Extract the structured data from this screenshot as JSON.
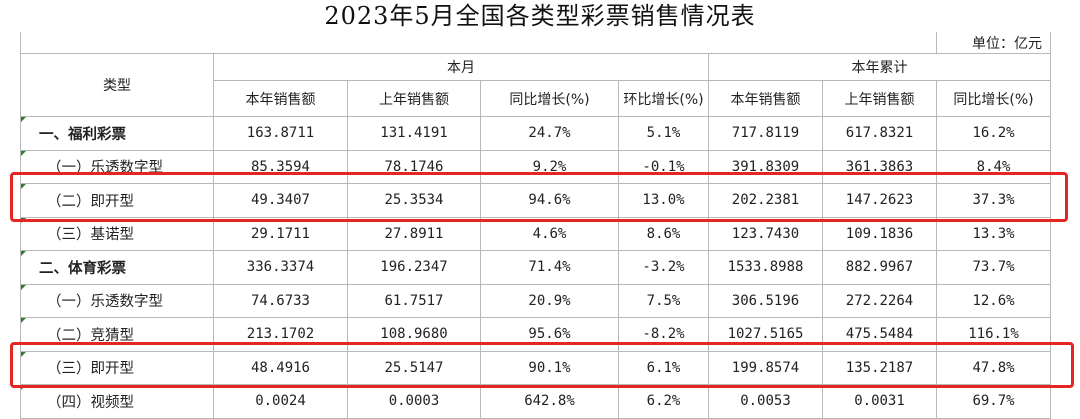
{
  "title": "2023年5月全国各类型彩票销售情况表",
  "unit": "单位：亿元",
  "header": {
    "type_label": "类型",
    "this_month": "本月",
    "ytd": "本年累计",
    "columns": [
      "本年销售额",
      "上年销售额",
      "同比增长(%)",
      "环比增长(%)",
      "本年销售额",
      "上年销售额",
      "同比增长(%)"
    ]
  },
  "rows": [
    {
      "name": "一、福利彩票",
      "cells": [
        "163.8711",
        "131.4191",
        "24.7%",
        "5.1%",
        "717.8119",
        "617.8321",
        "16.2%"
      ]
    },
    {
      "name": "（一）乐透数字型",
      "cells": [
        "85.3594",
        "78.1746",
        "9.2%",
        "-0.1%",
        "391.8309",
        "361.3863",
        "8.4%"
      ]
    },
    {
      "name": "（二）即开型",
      "cells": [
        "49.3407",
        "25.3534",
        "94.6%",
        "13.0%",
        "202.2381",
        "147.2623",
        "37.3%"
      ]
    },
    {
      "name": "（三）基诺型",
      "cells": [
        "29.1711",
        "27.8911",
        "4.6%",
        "8.6%",
        "123.7430",
        "109.1836",
        "13.3%"
      ]
    },
    {
      "name": "二、体育彩票",
      "cells": [
        "336.3374",
        "196.2347",
        "71.4%",
        "-3.2%",
        "1533.8988",
        "882.9967",
        "73.7%"
      ]
    },
    {
      "name": "（一）乐透数字型",
      "cells": [
        "74.6733",
        "61.7517",
        "20.9%",
        "7.5%",
        "306.5196",
        "272.2264",
        "12.6%"
      ]
    },
    {
      "name": "（二）竞猜型",
      "cells": [
        "213.1702",
        "108.9680",
        "95.6%",
        "-8.2%",
        "1027.5165",
        "475.5484",
        "116.1%"
      ]
    },
    {
      "name": "（三）即开型",
      "cells": [
        "48.4916",
        "25.5147",
        "90.1%",
        "6.1%",
        "199.8574",
        "135.2187",
        "47.8%"
      ]
    },
    {
      "name": "（四）视频型",
      "cells": [
        "0.0024",
        "0.0003",
        "642.8%",
        "6.2%",
        "0.0053",
        "0.0031",
        "69.7%"
      ]
    }
  ],
  "highlight_color": "#e52620"
}
